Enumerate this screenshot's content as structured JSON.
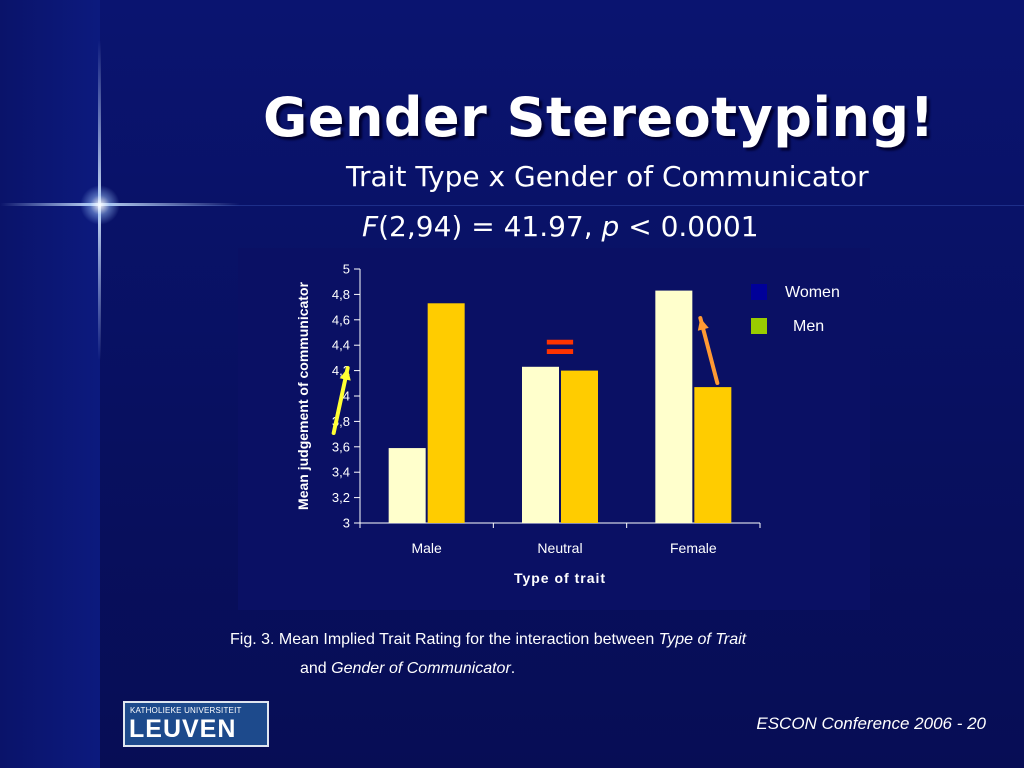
{
  "slide": {
    "title": "Gender Stereotyping!",
    "subtitle": "Trait Type x Gender of Communicator",
    "stat": {
      "f_symbol": "F",
      "f_args": "(2,94) = 41.97, ",
      "p_symbol": "p",
      "p_value": " < 0.0001"
    },
    "caption": {
      "line1_prefix": "Fig. 3.  Mean Implied Trait Rating for the interaction between ",
      "line1_italic": "Type of Trait",
      "line2_prefix": "and ",
      "line2_italic": "Gender of Communicator",
      "line2_suffix": "."
    },
    "logo": {
      "university": "KATHOLIEKE UNIVERSITEIT",
      "city": "LEUVEN"
    },
    "footer": "ESCON Conference 2006 - 20"
  },
  "chart_data": {
    "type": "bar",
    "categories": [
      "Male",
      "Neutral",
      "Female"
    ],
    "series": [
      {
        "name": "Women",
        "values": [
          3.59,
          4.23,
          4.83
        ],
        "color": "#ffffcc"
      },
      {
        "name": "Men",
        "values": [
          4.73,
          4.2,
          4.07
        ],
        "color": "#ffcc00"
      }
    ],
    "xlabel": "Type of trait",
    "ylabel": "Mean judgement of communicator",
    "ylim": [
      3,
      5
    ],
    "yticks": [
      "3",
      "3,2",
      "3,4",
      "3,6",
      "3,8",
      "4",
      "4,2",
      "4,4",
      "4,6",
      "4,8",
      "5"
    ],
    "legend_colors": [
      "#000099",
      "#99cc00"
    ],
    "legend_position": "top-right",
    "grid": false,
    "annotations": [
      {
        "kind": "arrow",
        "category": "Male",
        "color": "#ffff33",
        "direction": "up"
      },
      {
        "kind": "equals",
        "category": "Neutral",
        "symbol": "=",
        "color": "#ff3300"
      },
      {
        "kind": "arrow",
        "category": "Female",
        "color": "#ff9933",
        "direction": "up"
      }
    ]
  }
}
